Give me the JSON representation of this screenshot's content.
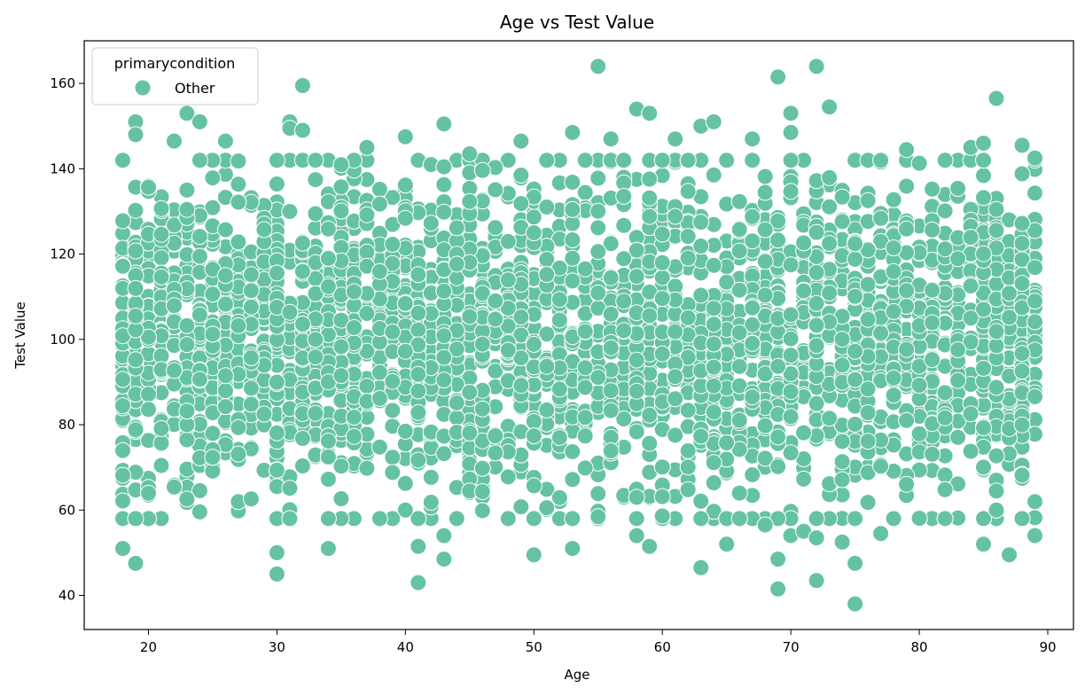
{
  "chart_data": {
    "type": "scatter",
    "title": "Age vs Test Value",
    "xlabel": "Age",
    "ylabel": "Test Value",
    "xlim": [
      15,
      92
    ],
    "ylim": [
      32,
      170
    ],
    "xticks": [
      20,
      30,
      40,
      50,
      60,
      70,
      80,
      90
    ],
    "yticks": [
      40,
      60,
      80,
      100,
      120,
      140,
      160
    ],
    "grid": false,
    "legend": {
      "title": "primarycondition",
      "placement": "top-left"
    },
    "series": [
      {
        "name": "Other",
        "color": "#66c2a5",
        "x_range": [
          18,
          89
        ],
        "x_integer": true,
        "point_count": 3000,
        "distribution": "approximately normal per age, mean 100, sd 20; bulk of points between 60 and 140",
        "highlighted_points": [
          {
            "x": 18,
            "y": 51
          },
          {
            "x": 19,
            "y": 47.5
          },
          {
            "x": 19,
            "y": 151
          },
          {
            "x": 19,
            "y": 148
          },
          {
            "x": 22,
            "y": 146.5
          },
          {
            "x": 23,
            "y": 153
          },
          {
            "x": 24,
            "y": 151
          },
          {
            "x": 26,
            "y": 146.5
          },
          {
            "x": 30,
            "y": 45
          },
          {
            "x": 30,
            "y": 50
          },
          {
            "x": 31,
            "y": 151
          },
          {
            "x": 31,
            "y": 149.5
          },
          {
            "x": 32,
            "y": 159.5
          },
          {
            "x": 32,
            "y": 149
          },
          {
            "x": 34,
            "y": 51
          },
          {
            "x": 37,
            "y": 145
          },
          {
            "x": 40,
            "y": 147.5
          },
          {
            "x": 41,
            "y": 43
          },
          {
            "x": 41,
            "y": 51.5
          },
          {
            "x": 43,
            "y": 48.5
          },
          {
            "x": 43,
            "y": 54
          },
          {
            "x": 43,
            "y": 150.5
          },
          {
            "x": 45,
            "y": 143.5
          },
          {
            "x": 49,
            "y": 146.5
          },
          {
            "x": 50,
            "y": 49.5
          },
          {
            "x": 53,
            "y": 148.5
          },
          {
            "x": 53,
            "y": 51
          },
          {
            "x": 55,
            "y": 164
          },
          {
            "x": 56,
            "y": 147
          },
          {
            "x": 58,
            "y": 154
          },
          {
            "x": 58,
            "y": 54
          },
          {
            "x": 59,
            "y": 153
          },
          {
            "x": 59,
            "y": 51.5
          },
          {
            "x": 61,
            "y": 147
          },
          {
            "x": 63,
            "y": 46.5
          },
          {
            "x": 63,
            "y": 150
          },
          {
            "x": 64,
            "y": 151
          },
          {
            "x": 65,
            "y": 52
          },
          {
            "x": 67,
            "y": 147
          },
          {
            "x": 68,
            "y": 56.5
          },
          {
            "x": 69,
            "y": 161.5
          },
          {
            "x": 69,
            "y": 41.5
          },
          {
            "x": 69,
            "y": 48.5
          },
          {
            "x": 70,
            "y": 153
          },
          {
            "x": 70,
            "y": 148.5
          },
          {
            "x": 70,
            "y": 54
          },
          {
            "x": 71,
            "y": 55
          },
          {
            "x": 72,
            "y": 164
          },
          {
            "x": 72,
            "y": 43.5
          },
          {
            "x": 72,
            "y": 53.5
          },
          {
            "x": 73,
            "y": 154.5
          },
          {
            "x": 74,
            "y": 52.5
          },
          {
            "x": 75,
            "y": 38
          },
          {
            "x": 75,
            "y": 47.5
          },
          {
            "x": 77,
            "y": 54.5
          },
          {
            "x": 79,
            "y": 144.5
          },
          {
            "x": 84,
            "y": 145
          },
          {
            "x": 85,
            "y": 146
          },
          {
            "x": 85,
            "y": 52
          },
          {
            "x": 86,
            "y": 156.5
          },
          {
            "x": 86,
            "y": 60
          },
          {
            "x": 87,
            "y": 49.5
          },
          {
            "x": 88,
            "y": 145.5
          },
          {
            "x": 89,
            "y": 142.5
          },
          {
            "x": 89,
            "y": 54
          },
          {
            "x": 89,
            "y": 62
          }
        ]
      }
    ]
  }
}
